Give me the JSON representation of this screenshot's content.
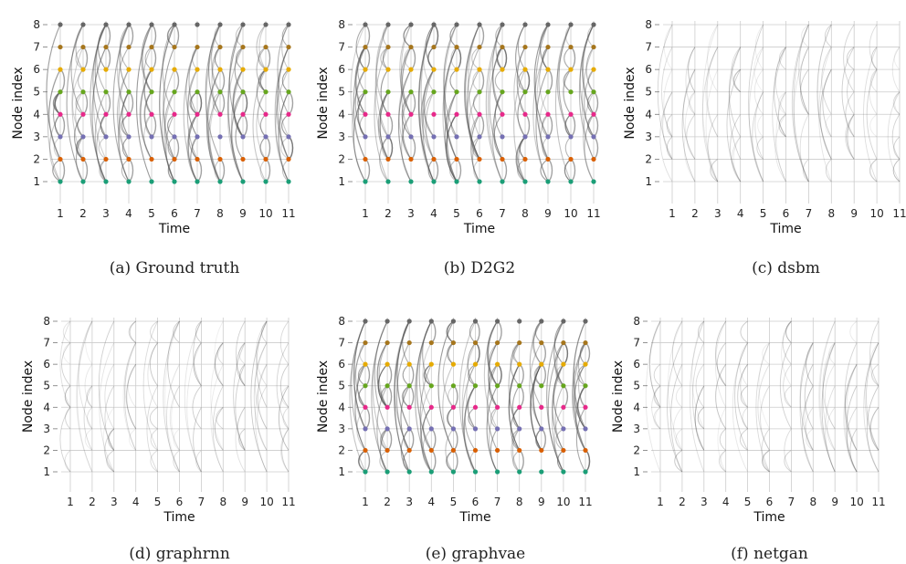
{
  "chart_data": [
    {
      "type": "scatter",
      "panel": "a",
      "caption": "(a) Ground truth",
      "xlabel": "Time",
      "ylabel": "Node index",
      "x_ticks": [
        "1",
        "2",
        "3",
        "4",
        "5",
        "6",
        "7",
        "8",
        "9",
        "10",
        "11"
      ],
      "y_ticks": [
        "1",
        "2",
        "3",
        "4",
        "5",
        "6",
        "7",
        "8"
      ],
      "xlim": [
        0.5,
        11
      ],
      "ylim": [
        0,
        8.3
      ],
      "grid": true,
      "nodes_shown": true,
      "edge_intensity": 1.0
    },
    {
      "type": "scatter",
      "panel": "b",
      "caption": "(b) D2G2",
      "xlabel": "Time",
      "ylabel": "Node index",
      "x_ticks": [
        "1",
        "2",
        "3",
        "4",
        "5",
        "6",
        "7",
        "8",
        "9",
        "10",
        "11"
      ],
      "y_ticks": [
        "1",
        "2",
        "3",
        "4",
        "5",
        "6",
        "7",
        "8"
      ],
      "xlim": [
        0.5,
        11
      ],
      "ylim": [
        0,
        8.3
      ],
      "grid": true,
      "nodes_shown": true,
      "edge_intensity": 1.0
    },
    {
      "type": "scatter",
      "panel": "c",
      "caption": "(c) dsbm",
      "xlabel": "Time",
      "ylabel": "Node index",
      "x_ticks": [
        "1",
        "2",
        "3",
        "4",
        "5",
        "6",
        "7",
        "8",
        "9",
        "10",
        "11"
      ],
      "y_ticks": [
        "1",
        "2",
        "3",
        "4",
        "5",
        "6",
        "7",
        "8"
      ],
      "xlim": [
        0.5,
        11
      ],
      "ylim": [
        0,
        8.3
      ],
      "grid": true,
      "nodes_shown": false,
      "edge_intensity": 0.35
    },
    {
      "type": "scatter",
      "panel": "d",
      "caption": "(d) graphrnn",
      "xlabel": "Time",
      "ylabel": "Node index",
      "x_ticks": [
        "1",
        "2",
        "3",
        "4",
        "5",
        "6",
        "7",
        "8",
        "9",
        "10",
        "11"
      ],
      "y_ticks": [
        "1",
        "2",
        "3",
        "4",
        "5",
        "6",
        "7",
        "8"
      ],
      "xlim": [
        0.5,
        11
      ],
      "ylim": [
        0,
        8.3
      ],
      "grid": true,
      "nodes_shown": false,
      "edge_intensity": 0.5
    },
    {
      "type": "scatter",
      "panel": "e",
      "caption": "(e) graphvae",
      "xlabel": "Time",
      "ylabel": "Node index",
      "x_ticks": [
        "1",
        "2",
        "3",
        "4",
        "5",
        "6",
        "7",
        "8",
        "9",
        "10",
        "11"
      ],
      "y_ticks": [
        "1",
        "2",
        "3",
        "4",
        "5",
        "6",
        "7",
        "8"
      ],
      "xlim": [
        0.5,
        11
      ],
      "ylim": [
        0,
        8.3
      ],
      "grid": true,
      "nodes_shown": true,
      "edge_intensity": 1.0
    },
    {
      "type": "scatter",
      "panel": "f",
      "caption": "(f) netgan",
      "xlabel": "Time",
      "ylabel": "Node index",
      "x_ticks": [
        "1",
        "2",
        "3",
        "4",
        "5",
        "6",
        "7",
        "8",
        "9",
        "10",
        "11"
      ],
      "y_ticks": [
        "1",
        "2",
        "3",
        "4",
        "5",
        "6",
        "7",
        "8"
      ],
      "xlim": [
        0.5,
        11
      ],
      "ylim": [
        0,
        8.3
      ],
      "grid": true,
      "nodes_shown": false,
      "edge_intensity": 0.55
    }
  ],
  "node_colors": [
    "#1b9e77",
    "#d95f02",
    "#7570b3",
    "#e7298a",
    "#66a61e",
    "#e6ab02",
    "#a6761d",
    "#666666"
  ],
  "edge_color": "#555555",
  "grid_color": "#cccccc"
}
